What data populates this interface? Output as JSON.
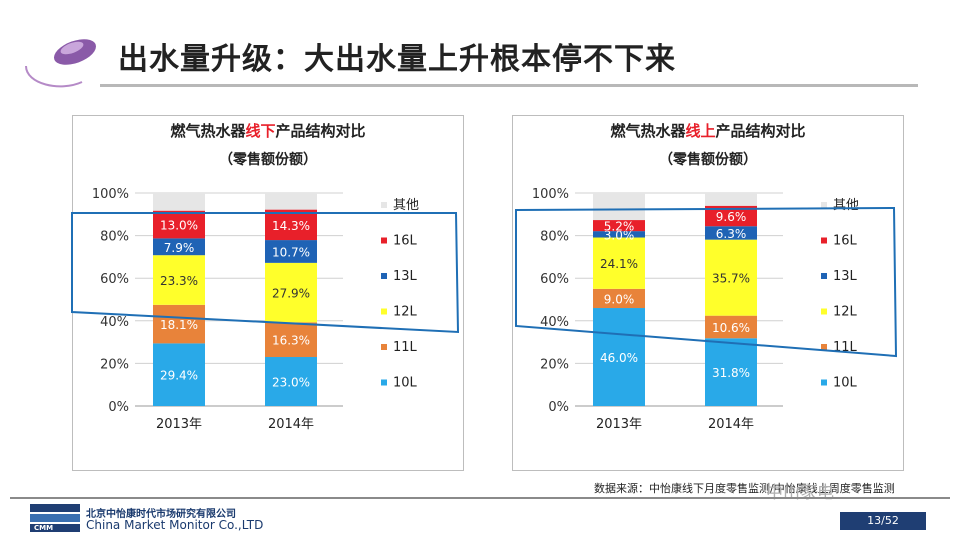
{
  "slide": {
    "title": "出水量升级：大出水量上升根本停不下来",
    "source": "数据来源：中怡康线下月度零售监测/中怡康线上周度零售监测",
    "company_cn": "北京中怡康时代市场研究有限公司",
    "company_en": "China Market Monitor Co.,LTD",
    "logo_text": "CMM",
    "watermark": "中山家电",
    "page": "13/52"
  },
  "colors": {
    "other": "#e6e6e6",
    "l16": "#e8202a",
    "l13": "#1f63b5",
    "l12": "#ffff2b",
    "l11": "#e8833a",
    "l10": "#29a9e8",
    "highlight": "#1f6fb5"
  },
  "chart_data": [
    {
      "type": "bar",
      "stacked": true,
      "title": "燃气热水器线下产品结构对比",
      "title_parts": [
        "燃气热水器",
        "线下",
        "产品结构对比"
      ],
      "subtitle": "（零售额份额）",
      "categories": [
        "2013年",
        "2014年"
      ],
      "ylim": [
        0,
        100
      ],
      "yticks": [
        "0%",
        "20%",
        "40%",
        "60%",
        "80%",
        "100%"
      ],
      "legend": [
        "其他",
        "16L",
        "13L",
        "12L",
        "11L",
        "10L"
      ],
      "series": [
        {
          "name": "10L",
          "key": "l10",
          "values": [
            29.4,
            23.0
          ],
          "labels": [
            "29.4%",
            "23.0%"
          ]
        },
        {
          "name": "11L",
          "key": "l11",
          "values": [
            18.1,
            16.3
          ],
          "labels": [
            "18.1%",
            "16.3%"
          ]
        },
        {
          "name": "12L",
          "key": "l12",
          "values": [
            23.3,
            27.9
          ],
          "labels": [
            "23.3%",
            "27.9%"
          ]
        },
        {
          "name": "13L",
          "key": "l13",
          "values": [
            7.9,
            10.7
          ],
          "labels": [
            "7.9%",
            "10.7%"
          ]
        },
        {
          "name": "16L",
          "key": "l16",
          "values": [
            13.0,
            14.3
          ],
          "labels": [
            "13.0%",
            "14.3%"
          ]
        },
        {
          "name": "其他",
          "key": "other",
          "values": [
            8.3,
            7.8
          ],
          "labels": [
            "",
            ""
          ]
        }
      ]
    },
    {
      "type": "bar",
      "stacked": true,
      "title": "燃气热水器线上产品结构对比",
      "title_parts": [
        "燃气热水器",
        "线上",
        "产品结构对比"
      ],
      "subtitle": "（零售额份额）",
      "categories": [
        "2013年",
        "2014年"
      ],
      "ylim": [
        0,
        100
      ],
      "yticks": [
        "0%",
        "20%",
        "40%",
        "60%",
        "80%",
        "100%"
      ],
      "legend": [
        "其他",
        "16L",
        "13L",
        "12L",
        "11L",
        "10L"
      ],
      "series": [
        {
          "name": "10L",
          "key": "l10",
          "values": [
            46.0,
            31.8
          ],
          "labels": [
            "46.0%",
            "31.8%"
          ]
        },
        {
          "name": "11L",
          "key": "l11",
          "values": [
            9.0,
            10.6
          ],
          "labels": [
            "9.0%",
            "10.6%"
          ]
        },
        {
          "name": "12L",
          "key": "l12",
          "values": [
            24.1,
            35.7
          ],
          "labels": [
            "24.1%",
            "35.7%"
          ]
        },
        {
          "name": "13L",
          "key": "l13",
          "values": [
            3.0,
            6.3
          ],
          "labels": [
            "3.0%",
            "6.3%"
          ]
        },
        {
          "name": "16L",
          "key": "l16",
          "values": [
            5.2,
            9.6
          ],
          "labels": [
            "5.2%",
            "9.6%"
          ]
        },
        {
          "name": "其他",
          "key": "other",
          "values": [
            12.7,
            6.0
          ],
          "labels": [
            "",
            ""
          ]
        }
      ]
    }
  ]
}
